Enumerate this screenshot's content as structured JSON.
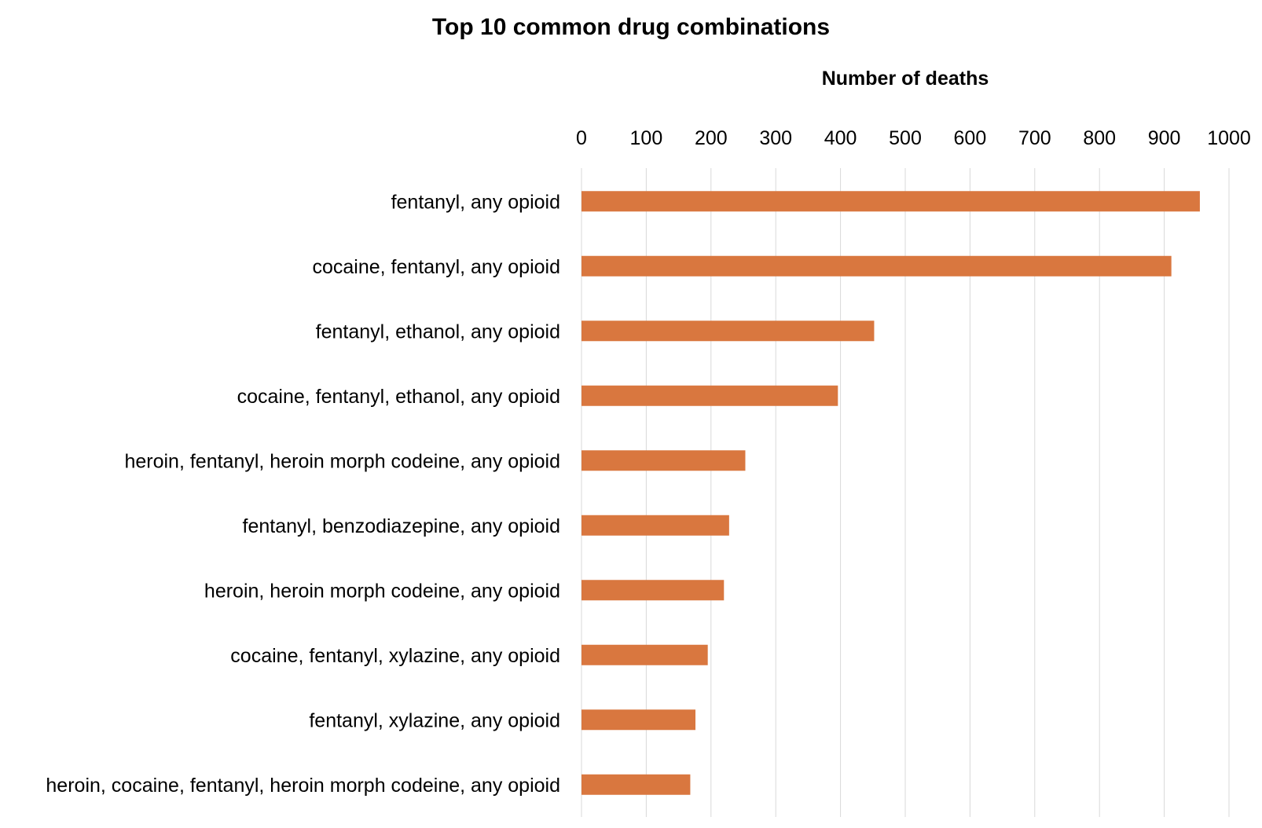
{
  "chart_data": {
    "type": "bar",
    "orientation": "horizontal",
    "title": "Top 10 common drug combinations",
    "xlabel": "Number of deaths",
    "ylabel": "",
    "xlim": [
      0,
      1000
    ],
    "x_ticks": [
      0,
      100,
      200,
      300,
      400,
      500,
      600,
      700,
      800,
      900,
      1000
    ],
    "x_axis_position": "top",
    "grid": true,
    "legend": "none",
    "bar_color": "#D9773F",
    "categories": [
      "fentanyl, any opioid",
      "cocaine, fentanyl, any opioid",
      "fentanyl, ethanol, any opioid",
      "cocaine, fentanyl, ethanol, any opioid",
      "heroin, fentanyl, heroin morph codeine, any opioid",
      "fentanyl, benzodiazepine, any opioid",
      "heroin, heroin morph codeine, any opioid",
      "cocaine, fentanyl, xylazine, any opioid",
      "fentanyl, xylazine, any opioid",
      "heroin, cocaine, fentanyl, heroin morph codeine, any opioid"
    ],
    "values": [
      955,
      911,
      452,
      396,
      253,
      228,
      220,
      195,
      176,
      168
    ]
  }
}
